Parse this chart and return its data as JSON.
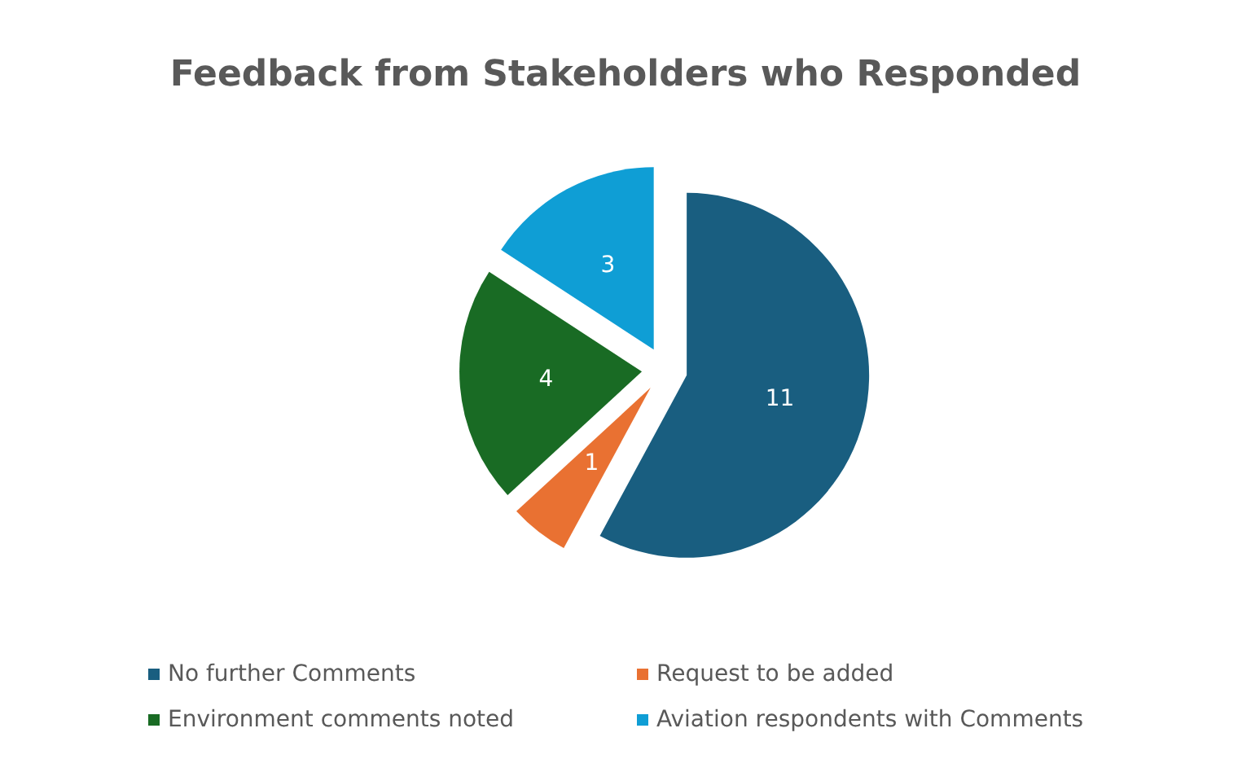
{
  "chart_data": {
    "type": "pie",
    "title": "Feedback from Stakeholders who Responded",
    "categories": [
      "No further Comments",
      "Request to be added",
      "Environment comments noted",
      "Aviation respondents with Comments"
    ],
    "values": [
      11,
      1,
      4,
      3
    ],
    "colors": [
      "#195e80",
      "#e97132",
      "#196b24",
      "#0f9ed5"
    ],
    "data_labels": true,
    "legend": "bottom"
  }
}
